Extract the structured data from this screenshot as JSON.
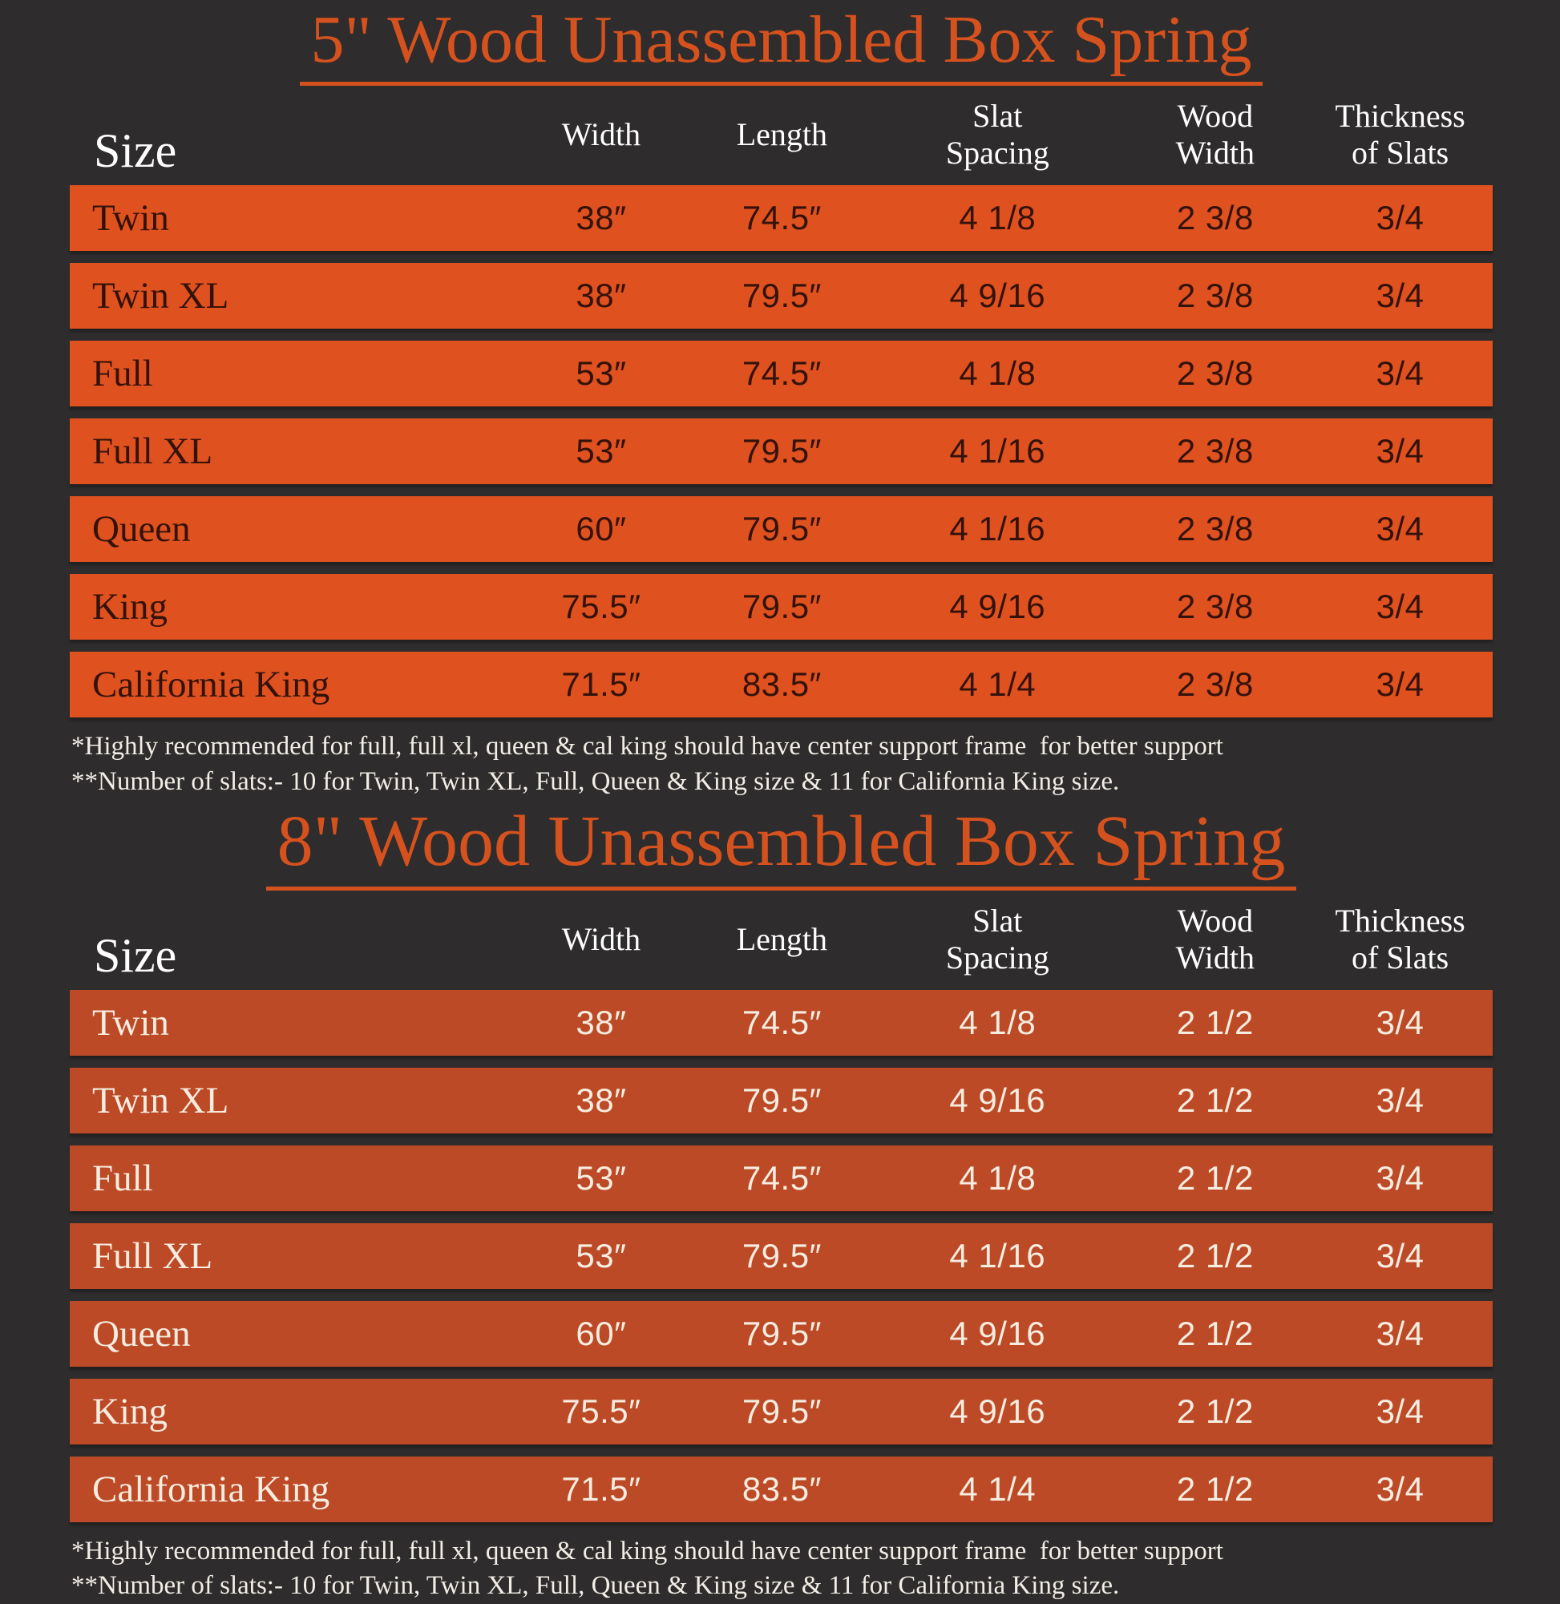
{
  "page": {
    "background_color": "#2e2c2c",
    "accent_color": "#d5521f"
  },
  "chart_data": [
    {
      "type": "table",
      "title": "5\" Wood Unassembled Box Spring",
      "row_bg_color": "#df511f",
      "row_text_color": "#33120a",
      "headers": {
        "size": "Size",
        "width": "Width",
        "length": "Length",
        "slat": "Slat\nSpacing",
        "wood": "Wood\nWidth",
        "thickness": "Thickness\nof Slats"
      },
      "rows": [
        {
          "size": "Twin",
          "width": "38″",
          "length": "74.5″",
          "slat": "4 1/8",
          "wood": "2 3/8",
          "thickness": "3/4"
        },
        {
          "size": "Twin XL",
          "width": "38″",
          "length": "79.5″",
          "slat": "4 9/16",
          "wood": "2 3/8",
          "thickness": "3/4"
        },
        {
          "size": "Full",
          "width": "53″",
          "length": "74.5″",
          "slat": "4 1/8",
          "wood": "2 3/8",
          "thickness": "3/4"
        },
        {
          "size": "Full XL",
          "width": "53″",
          "length": "79.5″",
          "slat": "4 1/16",
          "wood": "2 3/8",
          "thickness": "3/4"
        },
        {
          "size": "Queen",
          "width": "60″",
          "length": "79.5″",
          "slat": "4 1/16",
          "wood": "2 3/8",
          "thickness": "3/4"
        },
        {
          "size": "King",
          "width": "75.5″",
          "length": "79.5″",
          "slat": "4 9/16",
          "wood": "2 3/8",
          "thickness": "3/4"
        },
        {
          "size": "California King",
          "width": "71.5″",
          "length": "83.5″",
          "slat": "4 1/4",
          "wood": "2 3/8",
          "thickness": "3/4"
        }
      ],
      "footnotes": [
        "*Highly recommended for full, full xl, queen & cal king should have center support frame  for better support",
        "**Number of slats:- 10 for Twin, Twin XL, Full, Queen & King size & 11 for California King size."
      ]
    },
    {
      "type": "table",
      "title": "8\" Wood Unassembled Box Spring",
      "row_bg_color": "#bc4a26",
      "row_text_color": "#f6ece0",
      "headers": {
        "size": "Size",
        "width": "Width",
        "length": "Length",
        "slat": "Slat\nSpacing",
        "wood": "Wood\nWidth",
        "thickness": "Thickness\nof Slats"
      },
      "rows": [
        {
          "size": "Twin",
          "width": "38″",
          "length": "74.5″",
          "slat": "4 1/8",
          "wood": "2 1/2",
          "thickness": "3/4"
        },
        {
          "size": "Twin XL",
          "width": "38″",
          "length": "79.5″",
          "slat": "4 9/16",
          "wood": "2 1/2",
          "thickness": "3/4"
        },
        {
          "size": "Full",
          "width": "53″",
          "length": "74.5″",
          "slat": "4 1/8",
          "wood": "2 1/2",
          "thickness": "3/4"
        },
        {
          "size": "Full XL",
          "width": "53″",
          "length": "79.5″",
          "slat": "4 1/16",
          "wood": "2 1/2",
          "thickness": "3/4"
        },
        {
          "size": "Queen",
          "width": "60″",
          "length": "79.5″",
          "slat": "4 9/16",
          "wood": "2 1/2",
          "thickness": "3/4"
        },
        {
          "size": "King",
          "width": "75.5″",
          "length": "79.5″",
          "slat": "4 9/16",
          "wood": "2 1/2",
          "thickness": "3/4"
        },
        {
          "size": "California King",
          "width": "71.5″",
          "length": "83.5″",
          "slat": "4 1/4",
          "wood": "2 1/2",
          "thickness": "3/4"
        }
      ],
      "footnotes": [
        "*Highly recommended for full, full xl, queen & cal king should have center support frame  for better support",
        "**Number of slats:- 10 for Twin, Twin XL, Full, Queen & King size & 11 for California King size."
      ]
    }
  ]
}
